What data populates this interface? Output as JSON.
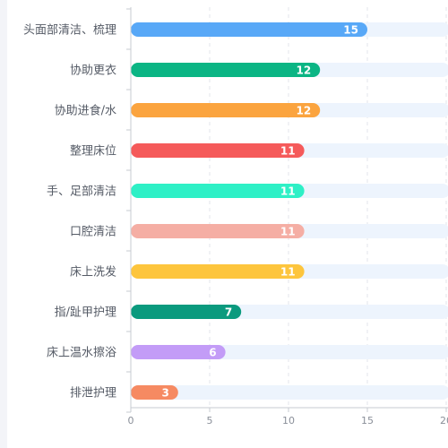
{
  "chart_data": {
    "type": "bar",
    "orientation": "horizontal",
    "categories": [
      "头面部清洁、梳理",
      "协助更衣",
      "协助进食/水",
      "整理床位",
      "手、足部清洁",
      "口腔清洁",
      "床上洗发",
      "指/趾甲护理",
      "床上温水擦浴",
      "排泄护理"
    ],
    "values": [
      15,
      12,
      12,
      11,
      11,
      11,
      11,
      7,
      6,
      3
    ],
    "colors": [
      "#58a8f7",
      "#0bb584",
      "#fba43f",
      "#f55a5a",
      "#2ef0c6",
      "#f5aea4",
      "#fdc53d",
      "#0b9a7e",
      "#c39cf7",
      "#f68a62"
    ],
    "track_color": "#edf4fd",
    "xlim": [
      0,
      20
    ],
    "xticks": [
      "0",
      "5",
      "10",
      "15",
      "20"
    ],
    "grid": "vertical-dashed",
    "legend": "none"
  }
}
